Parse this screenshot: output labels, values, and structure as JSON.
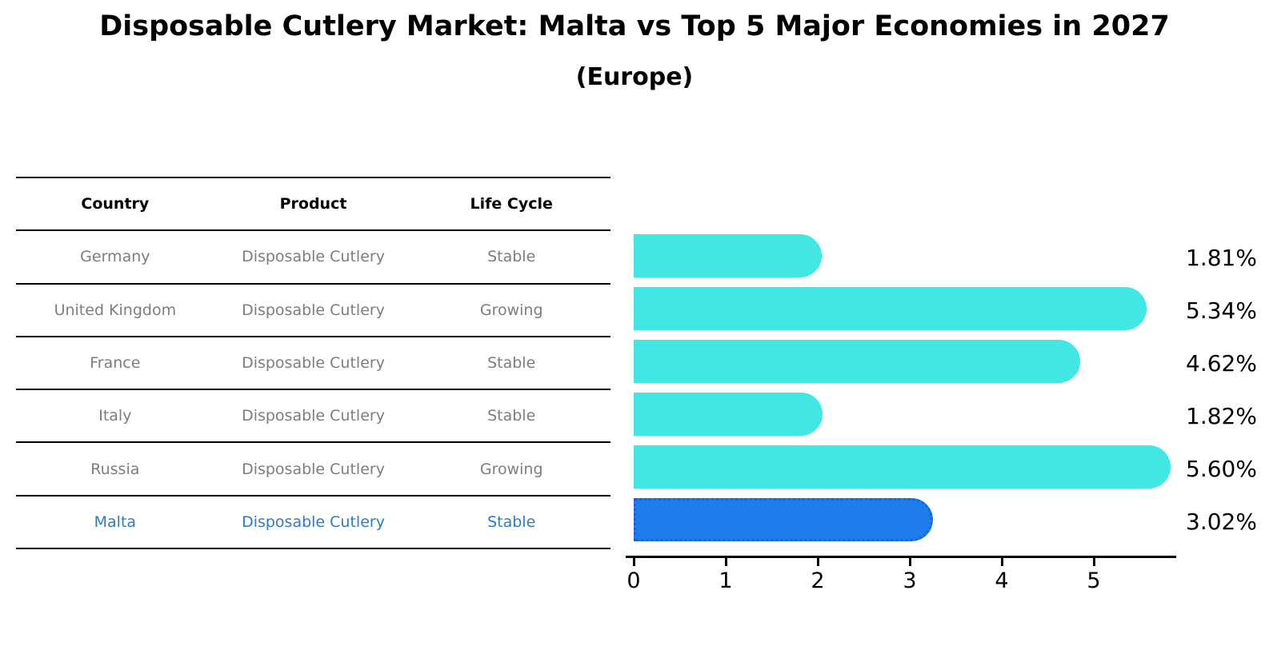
{
  "header": {
    "title": "Disposable Cutlery Market: Malta vs Top 5 Major Economies in 2027",
    "subtitle": "(Europe)"
  },
  "table": {
    "columns": [
      "Country",
      "Product",
      "Life Cycle"
    ],
    "rows": [
      {
        "country": "Germany",
        "product": "Disposable Cutlery",
        "life_cycle": "Stable",
        "highlighted": false
      },
      {
        "country": "United Kingdom",
        "product": "Disposable Cutlery",
        "life_cycle": "Growing",
        "highlighted": false
      },
      {
        "country": "France",
        "product": "Disposable Cutlery",
        "life_cycle": "Stable",
        "highlighted": false
      },
      {
        "country": "Italy",
        "product": "Disposable Cutlery",
        "life_cycle": "Stable",
        "highlighted": false
      },
      {
        "country": "Russia",
        "product": "Disposable Cutlery",
        "life_cycle": "Growing",
        "highlighted": false
      },
      {
        "country": "Malta",
        "product": "Disposable Cutlery",
        "life_cycle": "Stable",
        "highlighted": true
      }
    ]
  },
  "chart_data": {
    "type": "bar",
    "orientation": "horizontal",
    "title": "Disposable Cutlery Market: Malta vs Top 5 Major Economies in 2027",
    "subtitle": "(Europe)",
    "categories": [
      "Germany",
      "United Kingdom",
      "France",
      "Italy",
      "Russia",
      "Malta"
    ],
    "values": [
      1.81,
      5.34,
      4.62,
      1.82,
      5.6,
      3.02
    ],
    "value_labels": [
      "1.81%",
      "5.34%",
      "4.62%",
      "1.82%",
      "5.60%",
      "3.02%"
    ],
    "x_ticks": [
      "0",
      "1",
      "2",
      "3",
      "4",
      "5"
    ],
    "xlim": [
      0,
      5.9
    ],
    "grid": false,
    "legend": false,
    "highlight_index": 5,
    "colors": {
      "bar": "#42e6e3",
      "highlight_bar": "#1e7cec",
      "highlight_border": "#1565d8",
      "highlight_text": "#2b7bc9",
      "table_text": "#7d7d7d",
      "text": "#000000"
    }
  }
}
